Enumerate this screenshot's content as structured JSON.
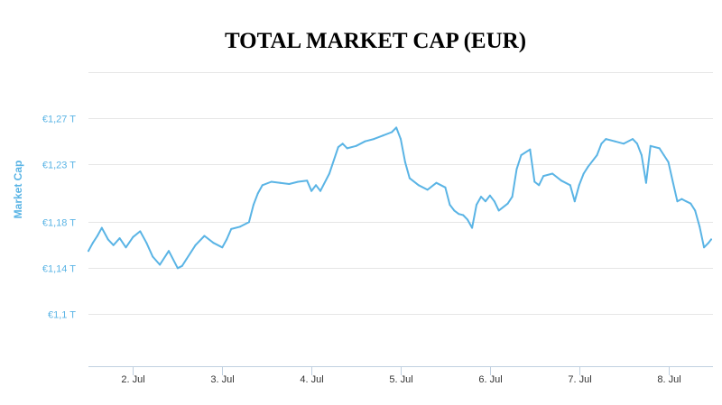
{
  "chart_data": {
    "type": "line",
    "title": "TOTAL MARKET CAP (EUR)",
    "xlabel": "",
    "ylabel": "Market Cap",
    "accent_color": "#5ab4e5",
    "grid": true,
    "legend": "none",
    "y_ticks": [
      {
        "value": 1.1,
        "label": "€1,1 T"
      },
      {
        "value": 1.14,
        "label": "€1,14 T"
      },
      {
        "value": 1.18,
        "label": "€1,18 T"
      },
      {
        "value": 1.23,
        "label": "€1,23 T"
      },
      {
        "value": 1.27,
        "label": "€1,27 T"
      }
    ],
    "x_ticks": [
      {
        "value": 2,
        "label": "2. Jul"
      },
      {
        "value": 3,
        "label": "3. Jul"
      },
      {
        "value": 4,
        "label": "4. Jul"
      },
      {
        "value": 5,
        "label": "5. Jul"
      },
      {
        "value": 6,
        "label": "6. Jul"
      },
      {
        "value": 7,
        "label": "7. Jul"
      },
      {
        "value": 8,
        "label": "8. Jul"
      }
    ],
    "xlim": [
      1.5,
      8.5
    ],
    "ylim": [
      1.055,
      1.31
    ],
    "series": [
      {
        "x": [
          1.5,
          1.55,
          1.6,
          1.65,
          1.72,
          1.78,
          1.85,
          1.92,
          2.0,
          2.08,
          2.15,
          2.22,
          2.3,
          2.4,
          2.5,
          2.55,
          2.6,
          2.7,
          2.8,
          2.9,
          3.0,
          3.05,
          3.1,
          3.2,
          3.3,
          3.35,
          3.4,
          3.45,
          3.55,
          3.65,
          3.75,
          3.85,
          3.95,
          4.0,
          4.05,
          4.1,
          4.2,
          4.3,
          4.35,
          4.4,
          4.5,
          4.6,
          4.7,
          4.8,
          4.9,
          4.95,
          5.0,
          5.05,
          5.1,
          5.2,
          5.3,
          5.4,
          5.5,
          5.55,
          5.6,
          5.65,
          5.7,
          5.75,
          5.8,
          5.85,
          5.9,
          5.95,
          6.0,
          6.05,
          6.1,
          6.2,
          6.25,
          6.3,
          6.35,
          6.45,
          6.5,
          6.55,
          6.6,
          6.7,
          6.8,
          6.9,
          6.95,
          7.0,
          7.05,
          7.1,
          7.2,
          7.25,
          7.3,
          7.4,
          7.5,
          7.6,
          7.65,
          7.7,
          7.75,
          7.8,
          7.9,
          7.95,
          8.0,
          8.05,
          8.1,
          8.15,
          8.2,
          8.25,
          8.3,
          8.35,
          8.4,
          8.45,
          8.48
        ],
        "y": [
          1.155,
          1.162,
          1.168,
          1.175,
          1.165,
          1.16,
          1.166,
          1.158,
          1.167,
          1.172,
          1.162,
          1.15,
          1.143,
          1.155,
          1.14,
          1.142,
          1.148,
          1.16,
          1.168,
          1.162,
          1.158,
          1.165,
          1.174,
          1.176,
          1.18,
          1.195,
          1.205,
          1.212,
          1.215,
          1.214,
          1.213,
          1.215,
          1.216,
          1.207,
          1.212,
          1.207,
          1.222,
          1.245,
          1.248,
          1.244,
          1.246,
          1.25,
          1.252,
          1.255,
          1.258,
          1.262,
          1.252,
          1.232,
          1.218,
          1.212,
          1.208,
          1.214,
          1.21,
          1.195,
          1.19,
          1.187,
          1.186,
          1.182,
          1.175,
          1.195,
          1.202,
          1.198,
          1.203,
          1.198,
          1.19,
          1.196,
          1.202,
          1.226,
          1.238,
          1.243,
          1.215,
          1.212,
          1.22,
          1.222,
          1.216,
          1.212,
          1.198,
          1.212,
          1.222,
          1.228,
          1.238,
          1.248,
          1.252,
          1.25,
          1.248,
          1.252,
          1.248,
          1.238,
          1.214,
          1.246,
          1.244,
          1.238,
          1.232,
          1.215,
          1.198,
          1.2,
          1.198,
          1.196,
          1.19,
          1.176,
          1.158,
          1.162,
          1.165
        ]
      }
    ]
  }
}
